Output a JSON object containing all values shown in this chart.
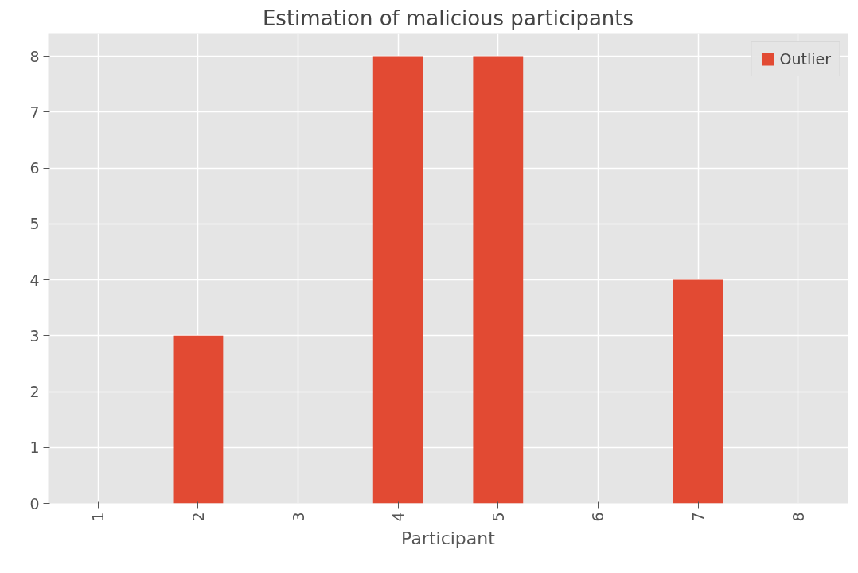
{
  "chart_data": {
    "type": "bar",
    "title": "Estimation of malicious participants",
    "xlabel": "Participant",
    "categories": [
      "1",
      "2",
      "3",
      "4",
      "5",
      "6",
      "7",
      "8"
    ],
    "series": [
      {
        "name": "Outlier",
        "color": "#e24a33",
        "values": [
          0,
          3,
          0,
          8,
          8,
          0,
          4,
          0
        ]
      }
    ],
    "ylim": [
      0,
      8.4
    ],
    "yticks": [
      0,
      1,
      2,
      3,
      4,
      5,
      6,
      7,
      8
    ],
    "grid": true,
    "legend": "top right"
  }
}
